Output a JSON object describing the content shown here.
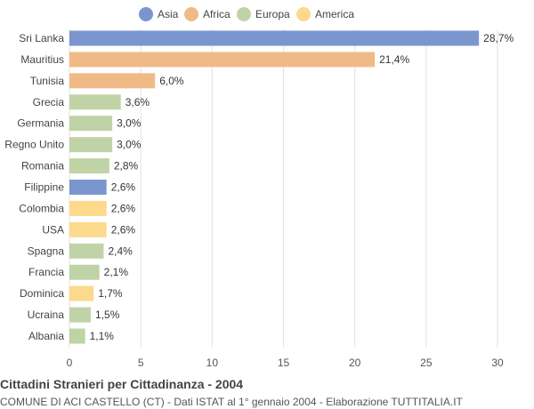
{
  "chart_data": {
    "type": "bar",
    "orientation": "horizontal",
    "title": "Cittadini Stranieri per Cittadinanza - 2004",
    "subtitle": "COMUNE DI ACI CASTELLO (CT) - Dati ISTAT al 1° gennaio 2004 - Elaborazione TUTTITALIA.IT",
    "legend": {
      "placement": "top-center",
      "entries": [
        {
          "name": "Asia",
          "color": "#7b96cf"
        },
        {
          "name": "Africa",
          "color": "#f0ba87"
        },
        {
          "name": "Europa",
          "color": "#c0d3a6"
        },
        {
          "name": "America",
          "color": "#fdd98b"
        }
      ]
    },
    "categories": [
      "Sri Lanka",
      "Mauritius",
      "Tunisia",
      "Grecia",
      "Germania",
      "Regno Unito",
      "Romania",
      "Filippine",
      "Colombia",
      "USA",
      "Spagna",
      "Francia",
      "Dominica",
      "Ucraina",
      "Albania"
    ],
    "values": [
      28.7,
      21.4,
      6.0,
      3.6,
      3.0,
      3.0,
      2.8,
      2.6,
      2.6,
      2.6,
      2.4,
      2.1,
      1.7,
      1.5,
      1.1
    ],
    "value_labels": [
      "28,7%",
      "21,4%",
      "6,0%",
      "3,6%",
      "3,0%",
      "3,0%",
      "2,8%",
      "2,6%",
      "2,6%",
      "2,6%",
      "2,4%",
      "2,1%",
      "1,7%",
      "1,5%",
      "1,1%"
    ],
    "groups": [
      "Asia",
      "Africa",
      "Africa",
      "Europa",
      "Europa",
      "Europa",
      "Europa",
      "Asia",
      "America",
      "America",
      "Europa",
      "Europa",
      "America",
      "Europa",
      "Europa"
    ],
    "xlim": [
      0,
      30
    ],
    "xticks": [
      0,
      5,
      10,
      15,
      20,
      25,
      30
    ],
    "grid": "vertical"
  }
}
